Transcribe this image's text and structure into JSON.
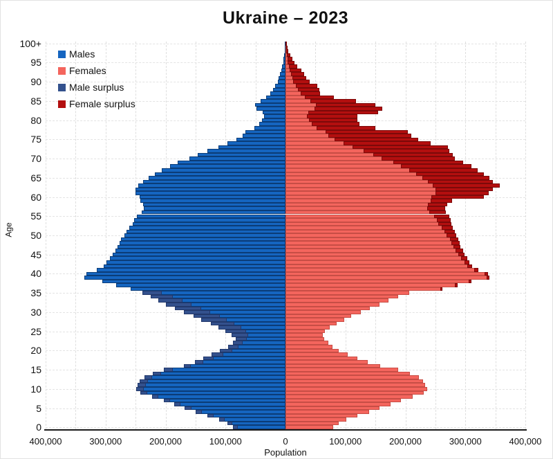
{
  "title": "Ukraine – 2023",
  "colors": {
    "male": "#1565c0",
    "female": "#f4655d",
    "male_surplus": "#33518d",
    "female_surplus": "#b30f0f",
    "grid": "#dedede",
    "axis": "#1a1a1a"
  },
  "legend": [
    {
      "label": "Males",
      "color_key": "male"
    },
    {
      "label": "Females",
      "color_key": "female"
    },
    {
      "label": "Male surplus",
      "color_key": "male_surplus"
    },
    {
      "label": "Female surplus",
      "color_key": "female_surplus"
    }
  ],
  "chart_data": {
    "type": "bar",
    "subtype": "population-pyramid",
    "title": "Ukraine – 2023",
    "xlabel": "Population",
    "ylabel": "Age",
    "xlim": [
      -400000,
      400000
    ],
    "grid": true,
    "legend_position": "upper-left",
    "x_tick_values": [
      -400000,
      -300000,
      -200000,
      -100000,
      0,
      100000,
      200000,
      300000,
      400000
    ],
    "x_tick_labels": [
      "400,000",
      "300,000",
      "200,000",
      "100,000",
      "0",
      "100,000",
      "200,000",
      "300,000",
      "400,000"
    ],
    "y_tick_step": 5,
    "y_tick_labels_top_to_bottom": [
      "100+",
      "95",
      "90",
      "85",
      "80",
      "75",
      "70",
      "65",
      "60",
      "55",
      "50",
      "45",
      "40",
      "35",
      "30",
      "25",
      "20",
      "15",
      "10",
      "5",
      "0"
    ],
    "ages": "0 to 100 (top bar is 100+), one bar per single year of age",
    "series": [
      {
        "name": "Males",
        "side": "left",
        "values_by_age": [
          88000,
          97000,
          111000,
          130000,
          150000,
          168000,
          186000,
          203000,
          223000,
          242000,
          249000,
          247000,
          243000,
          235000,
          221000,
          203000,
          170000,
          151000,
          137000,
          123000,
          109000,
          96000,
          88000,
          83000,
          90000,
          100000,
          112000,
          125000,
          141000,
          153000,
          169000,
          184000,
          199000,
          212000,
          225000,
          239000,
          258000,
          282000,
          305000,
          335000,
          332000,
          315000,
          303000,
          298000,
          293000,
          288000,
          284000,
          280000,
          277000,
          274000,
          269000,
          265000,
          260000,
          255000,
          252000,
          248000,
          240000,
          236000,
          238000,
          242000,
          243000,
          250000,
          250000,
          246000,
          238000,
          228000,
          218000,
          206000,
          193000,
          180000,
          160000,
          146000,
          130000,
          112000,
          97000,
          82000,
          72000,
          67000,
          52000,
          44000,
          39000,
          36000,
          38000,
          48000,
          51000,
          41000,
          32000,
          25000,
          21000,
          17000,
          13000,
          11000,
          9000,
          7000,
          6000,
          4000,
          3000,
          2200,
          1600,
          1100,
          800
        ]
      },
      {
        "name": "Females",
        "side": "right",
        "values_by_age": [
          80000,
          89000,
          101000,
          120000,
          139000,
          157000,
          175000,
          192000,
          212000,
          230000,
          236000,
          233000,
          229000,
          222000,
          207000,
          188000,
          158000,
          137000,
          120000,
          104000,
          89000,
          78000,
          71000,
          65000,
          62000,
          66000,
          74000,
          85000,
          98000,
          110000,
          126000,
          141000,
          157000,
          172000,
          188000,
          206000,
          262000,
          287000,
          310000,
          340000,
          338000,
          322000,
          311000,
          307000,
          303000,
          299000,
          296000,
          292000,
          290000,
          288000,
          285000,
          282000,
          279000,
          277000,
          275000,
          273000,
          268000,
          266000,
          270000,
          278000,
          331000,
          339000,
          346000,
          357000,
          346000,
          340000,
          331000,
          321000,
          310000,
          296000,
          282000,
          279000,
          273000,
          271000,
          242000,
          221000,
          210000,
          204000,
          150000,
          123000,
          120000,
          120000,
          154000,
          161000,
          150000,
          118000,
          81000,
          58000,
          56000,
          53000,
          40000,
          35000,
          31000,
          27000,
          20000,
          15000,
          11000,
          8000,
          5000,
          3000,
          2000
        ]
      }
    ],
    "surplus_note": "Male surplus (dark blue) drawn at tip of male bar where males exceed females; Female surplus (dark red) drawn at tip of female bar where females exceed males"
  }
}
